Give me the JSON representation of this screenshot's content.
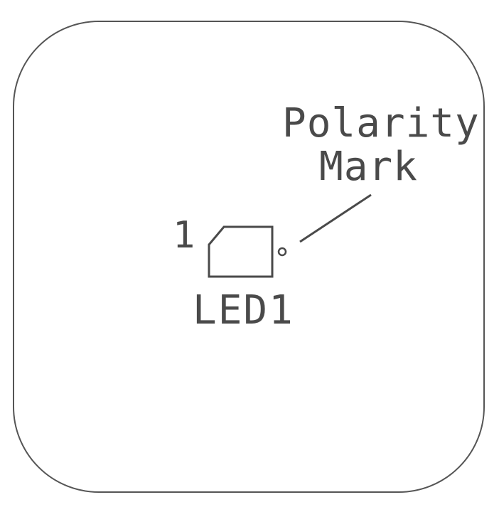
{
  "diagram": {
    "pin_label": "1",
    "reference_designator": "LED1",
    "annotation_line1": "Polarity",
    "annotation_line2": "Mark"
  },
  "colors": {
    "outline": "#555555",
    "silkscreen": "#4a4a4a",
    "background": "#ffffff"
  }
}
